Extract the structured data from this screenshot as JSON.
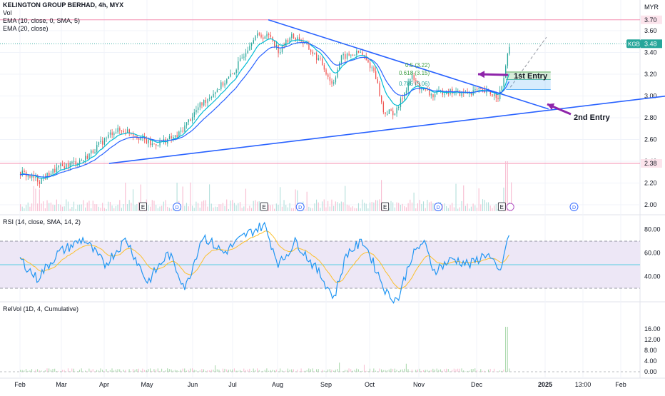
{
  "header": {
    "symbol_line": "KELINGTON GROUP BERHAD, 4h, MYX",
    "vol": "Vol",
    "ema1": "EMA (10, close, 0, SMA, 5)",
    "ema2": "EMA (20, close)",
    "currency": "MYR"
  },
  "panes": {
    "rsi_legend": "RSI (14, close, SMA, 14, 2)",
    "relvol_legend": "RelVol (1D, 4, Cumulative)"
  },
  "annotations": {
    "entry1": "1st Entry",
    "entry2": "2nd Entry",
    "fib_05": "0.5 (3.22)",
    "fib_0618": "0.618 (3.15)",
    "fib_0786": "0.786 (3.06)"
  },
  "price_tag": {
    "symbol": "KGB",
    "value": "3.48"
  },
  "level_labels": {
    "top": "3.70",
    "bottom": "2.38"
  },
  "events": [
    {
      "kind": "E",
      "month": 2.9
    },
    {
      "kind": "D",
      "month": 3.7
    },
    {
      "kind": "E",
      "month": 5.75
    },
    {
      "kind": "D",
      "month": 6.6
    },
    {
      "kind": "E",
      "month": 8.6
    },
    {
      "kind": "D",
      "month": 9.85
    },
    {
      "kind": "E",
      "month": 11.35
    },
    {
      "kind": "D",
      "month": 13.05
    }
  ],
  "colors": {
    "up": "#26a69a",
    "down": "#ef5350",
    "trendline": "#2962ff",
    "ema_fast": "#00bcd4",
    "ema_slow": "#2962ff",
    "arrow": "#8e24aa",
    "level": "#f48fb1",
    "rsi_line": "#2196f3",
    "rsi_ma": "#fbc02d",
    "rsi_band": "#ede7f6",
    "relvol_bar": "#26a69a"
  },
  "chart_data": [
    {
      "type": "candlestick",
      "title": "KELINGTON GROUP BERHAD, 4h, MYX",
      "x_axis": {
        "tick_labels": [
          "Feb",
          "Mar",
          "Apr",
          "May",
          "Jun",
          "Jul",
          "Aug",
          "Sep",
          "Oct",
          "Nov",
          "Dec",
          "2025",
          "13:00",
          "Feb"
        ]
      },
      "y_axis": {
        "unit": "MYR",
        "ticks": [
          2.0,
          2.2,
          2.4,
          2.6,
          2.8,
          3.0,
          3.2,
          3.4,
          3.6
        ],
        "range": [
          1.94,
          3.76
        ]
      },
      "anchors": [
        {
          "month": 0.0,
          "close": 2.3
        },
        {
          "month": 0.45,
          "close": 2.22
        },
        {
          "month": 0.85,
          "close": 2.33
        },
        {
          "month": 1.5,
          "close": 2.42
        },
        {
          "month": 2.2,
          "close": 2.68
        },
        {
          "month": 2.55,
          "close": 2.68
        },
        {
          "month": 3.1,
          "close": 2.55
        },
        {
          "month": 3.7,
          "close": 2.63
        },
        {
          "month": 4.2,
          "close": 2.9
        },
        {
          "month": 4.6,
          "close": 3.05
        },
        {
          "month": 5.0,
          "close": 3.2
        },
        {
          "month": 5.5,
          "close": 3.55
        },
        {
          "month": 5.9,
          "close": 3.55
        },
        {
          "month": 6.1,
          "close": 3.4
        },
        {
          "month": 6.35,
          "close": 3.55
        },
        {
          "month": 6.6,
          "close": 3.52
        },
        {
          "month": 7.1,
          "close": 3.3
        },
        {
          "month": 7.35,
          "close": 3.1
        },
        {
          "month": 7.55,
          "close": 3.35
        },
        {
          "month": 8.0,
          "close": 3.4
        },
        {
          "month": 8.35,
          "close": 3.22
        },
        {
          "month": 8.55,
          "close": 2.85
        },
        {
          "month": 8.85,
          "close": 2.85
        },
        {
          "month": 9.2,
          "close": 3.18
        },
        {
          "month": 9.4,
          "close": 3.08
        },
        {
          "month": 9.7,
          "close": 3.0
        },
        {
          "month": 10.0,
          "close": 3.05
        },
        {
          "month": 10.4,
          "close": 3.02
        },
        {
          "month": 10.75,
          "close": 3.05
        },
        {
          "month": 11.0,
          "close": 3.03
        },
        {
          "month": 11.25,
          "close": 3.0
        },
        {
          "month": 11.35,
          "close": 3.08
        },
        {
          "month": 11.5,
          "close": 3.45
        }
      ],
      "last_price": 3.48,
      "horizontal_levels": [
        3.7,
        2.38
      ],
      "trendlines": [
        {
          "from": {
            "month": 5.85,
            "price": 3.7
          },
          "to": {
            "month": 12.45,
            "price": 2.88
          }
        },
        {
          "from": {
            "month": 2.1,
            "price": 2.38
          },
          "to": {
            "month": 16.5,
            "price": 3.06
          }
        }
      ],
      "projection": {
        "from": {
          "month": 11.55,
          "price": 3.08
        },
        "to": {
          "month": 12.4,
          "price": 3.54
        }
      },
      "fib_zones": [
        {
          "label": "0.5 (3.22)",
          "top": 3.22,
          "bottom": 3.15,
          "from_month": 11.45,
          "to_month": 12.5
        },
        {
          "label": "0.618 (3.15)",
          "top": 3.15,
          "bottom": 3.06,
          "from_month": 11.45,
          "to_month": 12.5
        }
      ],
      "entries": [
        {
          "label": "1st Entry",
          "at_month": 12.6,
          "price": 3.2
        },
        {
          "label": "2nd Entry",
          "at_month": 14.4,
          "price": 2.91
        }
      ]
    },
    {
      "type": "line",
      "title": "RSI (14, close, SMA, 14, 2)",
      "y_axis": {
        "ticks": [
          40.0,
          60.0,
          80.0
        ],
        "range": [
          17,
          88
        ]
      },
      "bands": [
        30,
        70
      ],
      "midline": 50,
      "anchors": [
        {
          "month": 0.0,
          "value": 55
        },
        {
          "month": 0.4,
          "value": 38
        },
        {
          "month": 0.9,
          "value": 60
        },
        {
          "month": 1.5,
          "value": 72
        },
        {
          "month": 2.0,
          "value": 50
        },
        {
          "month": 2.5,
          "value": 72
        },
        {
          "month": 3.0,
          "value": 35
        },
        {
          "month": 3.5,
          "value": 60
        },
        {
          "month": 3.9,
          "value": 30
        },
        {
          "month": 4.3,
          "value": 75
        },
        {
          "month": 4.8,
          "value": 60
        },
        {
          "month": 5.3,
          "value": 75
        },
        {
          "month": 5.75,
          "value": 84
        },
        {
          "month": 6.1,
          "value": 50
        },
        {
          "month": 6.5,
          "value": 70
        },
        {
          "month": 7.1,
          "value": 40
        },
        {
          "month": 7.4,
          "value": 22
        },
        {
          "month": 7.7,
          "value": 60
        },
        {
          "month": 8.1,
          "value": 70
        },
        {
          "month": 8.4,
          "value": 45
        },
        {
          "month": 8.65,
          "value": 25
        },
        {
          "month": 8.9,
          "value": 20
        },
        {
          "month": 9.2,
          "value": 55
        },
        {
          "month": 9.5,
          "value": 70
        },
        {
          "month": 9.75,
          "value": 45
        },
        {
          "month": 10.2,
          "value": 55
        },
        {
          "month": 10.6,
          "value": 50
        },
        {
          "month": 11.0,
          "value": 60
        },
        {
          "month": 11.3,
          "value": 42
        },
        {
          "month": 11.5,
          "value": 75
        }
      ]
    },
    {
      "type": "bar",
      "title": "RelVol (1D, 4, Cumulative)",
      "y_axis": {
        "ticks": [
          0.0,
          4.0,
          8.0,
          12.0,
          16.0
        ],
        "range": [
          -1,
          17.5
        ]
      },
      "typical_value": 0.8,
      "spikes": [
        {
          "month": 11.45,
          "value": 16.8
        },
        {
          "month": 8.1,
          "value": 2.6
        },
        {
          "month": 4.6,
          "value": 2.4
        },
        {
          "month": 7.5,
          "value": 3.4
        },
        {
          "month": 9.1,
          "value": 3.0
        }
      ]
    }
  ]
}
